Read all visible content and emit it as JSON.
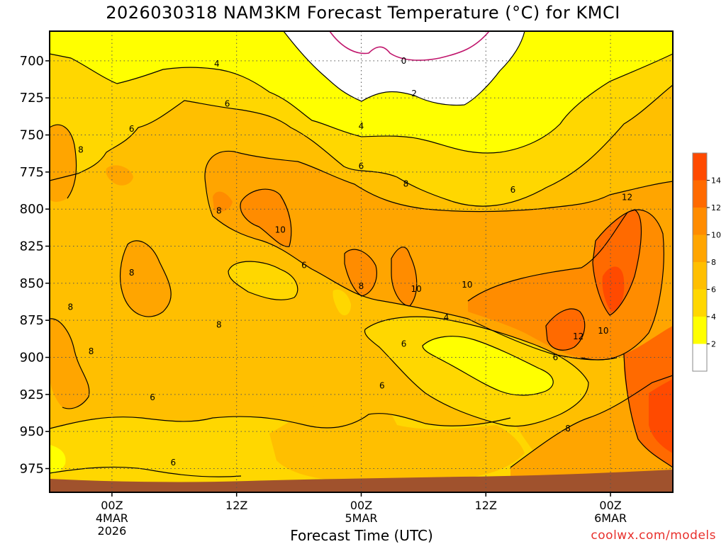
{
  "chart_title": "2026030318 NAM3KM Forecast Temperature (°C) for KMCI",
  "xlabel": "Forecast Time (UTC)",
  "credit": "coolwx.com/models",
  "chart_data": {
    "type": "heatmap",
    "title": "2026030318 NAM3KM Forecast Temperature (°C) for KMCI",
    "xlabel": "Forecast Time (UTC)",
    "ylabel": "",
    "x_ticks": [
      {
        "t": 6,
        "lines": [
          "00Z",
          "4MAR",
          "2026"
        ]
      },
      {
        "t": 18,
        "lines": [
          "12Z"
        ]
      },
      {
        "t": 30,
        "lines": [
          "00Z",
          "5MAR"
        ]
      },
      {
        "t": 42,
        "lines": [
          "12Z"
        ]
      },
      {
        "t": 54,
        "lines": [
          "00Z",
          "6MAR"
        ]
      }
    ],
    "xlim": [
      0,
      60
    ],
    "y_ticks": [
      700,
      725,
      750,
      775,
      800,
      825,
      850,
      875,
      900,
      925,
      950,
      975
    ],
    "ylim": [
      680,
      991
    ],
    "y_inverted": true,
    "grid": true,
    "levels": [
      0,
      2,
      4,
      6,
      8,
      10,
      12,
      14
    ],
    "colorbar": {
      "labels": [
        "2",
        "4",
        "6",
        "8",
        "10",
        "12",
        "14"
      ],
      "colors": [
        "#ffffff",
        "#ffff00",
        "#ffd700",
        "#ffbf00",
        "#ffa500",
        "#ff8c00",
        "#ff6a00",
        "#ff4a00"
      ]
    },
    "colorbar_placement": "right",
    "contour_labels": [
      {
        "text": "4",
        "t": 16.1,
        "p": 702
      },
      {
        "text": "0",
        "t": 34.1,
        "p": 700
      },
      {
        "text": "2",
        "t": 35.1,
        "p": 722
      },
      {
        "text": "6",
        "t": 17.1,
        "p": 729
      },
      {
        "text": "6",
        "t": 7.9,
        "p": 746
      },
      {
        "text": "4",
        "t": 30.0,
        "p": 744
      },
      {
        "text": "8",
        "t": 3.0,
        "p": 760
      },
      {
        "text": "6",
        "t": 30.0,
        "p": 771
      },
      {
        "text": "8",
        "t": 34.3,
        "p": 783
      },
      {
        "text": "6",
        "t": 44.6,
        "p": 787
      },
      {
        "text": "12",
        "t": 55.6,
        "p": 792
      },
      {
        "text": "8",
        "t": 16.3,
        "p": 801
      },
      {
        "text": "10",
        "t": 22.2,
        "p": 814
      },
      {
        "text": "6",
        "t": 24.5,
        "p": 838
      },
      {
        "text": "8",
        "t": 7.9,
        "p": 843
      },
      {
        "text": "8",
        "t": 30.0,
        "p": 852
      },
      {
        "text": "10",
        "t": 35.3,
        "p": 854
      },
      {
        "text": "10",
        "t": 40.2,
        "p": 851
      },
      {
        "text": "8",
        "t": 2.0,
        "p": 866
      },
      {
        "text": "8",
        "t": 16.3,
        "p": 878
      },
      {
        "text": "4",
        "t": 38.2,
        "p": 873
      },
      {
        "text": "12",
        "t": 50.9,
        "p": 886
      },
      {
        "text": "10",
        "t": 53.3,
        "p": 882
      },
      {
        "text": "8",
        "t": 4.0,
        "p": 896
      },
      {
        "text": "6",
        "t": 34.1,
        "p": 891
      },
      {
        "text": "6",
        "t": 48.7,
        "p": 900
      },
      {
        "text": "6",
        "t": 32.0,
        "p": 919
      },
      {
        "text": "6",
        "t": 9.9,
        "p": 927
      },
      {
        "text": "8",
        "t": 49.9,
        "p": 948
      },
      {
        "text": "6",
        "t": 11.9,
        "p": 971
      }
    ]
  }
}
